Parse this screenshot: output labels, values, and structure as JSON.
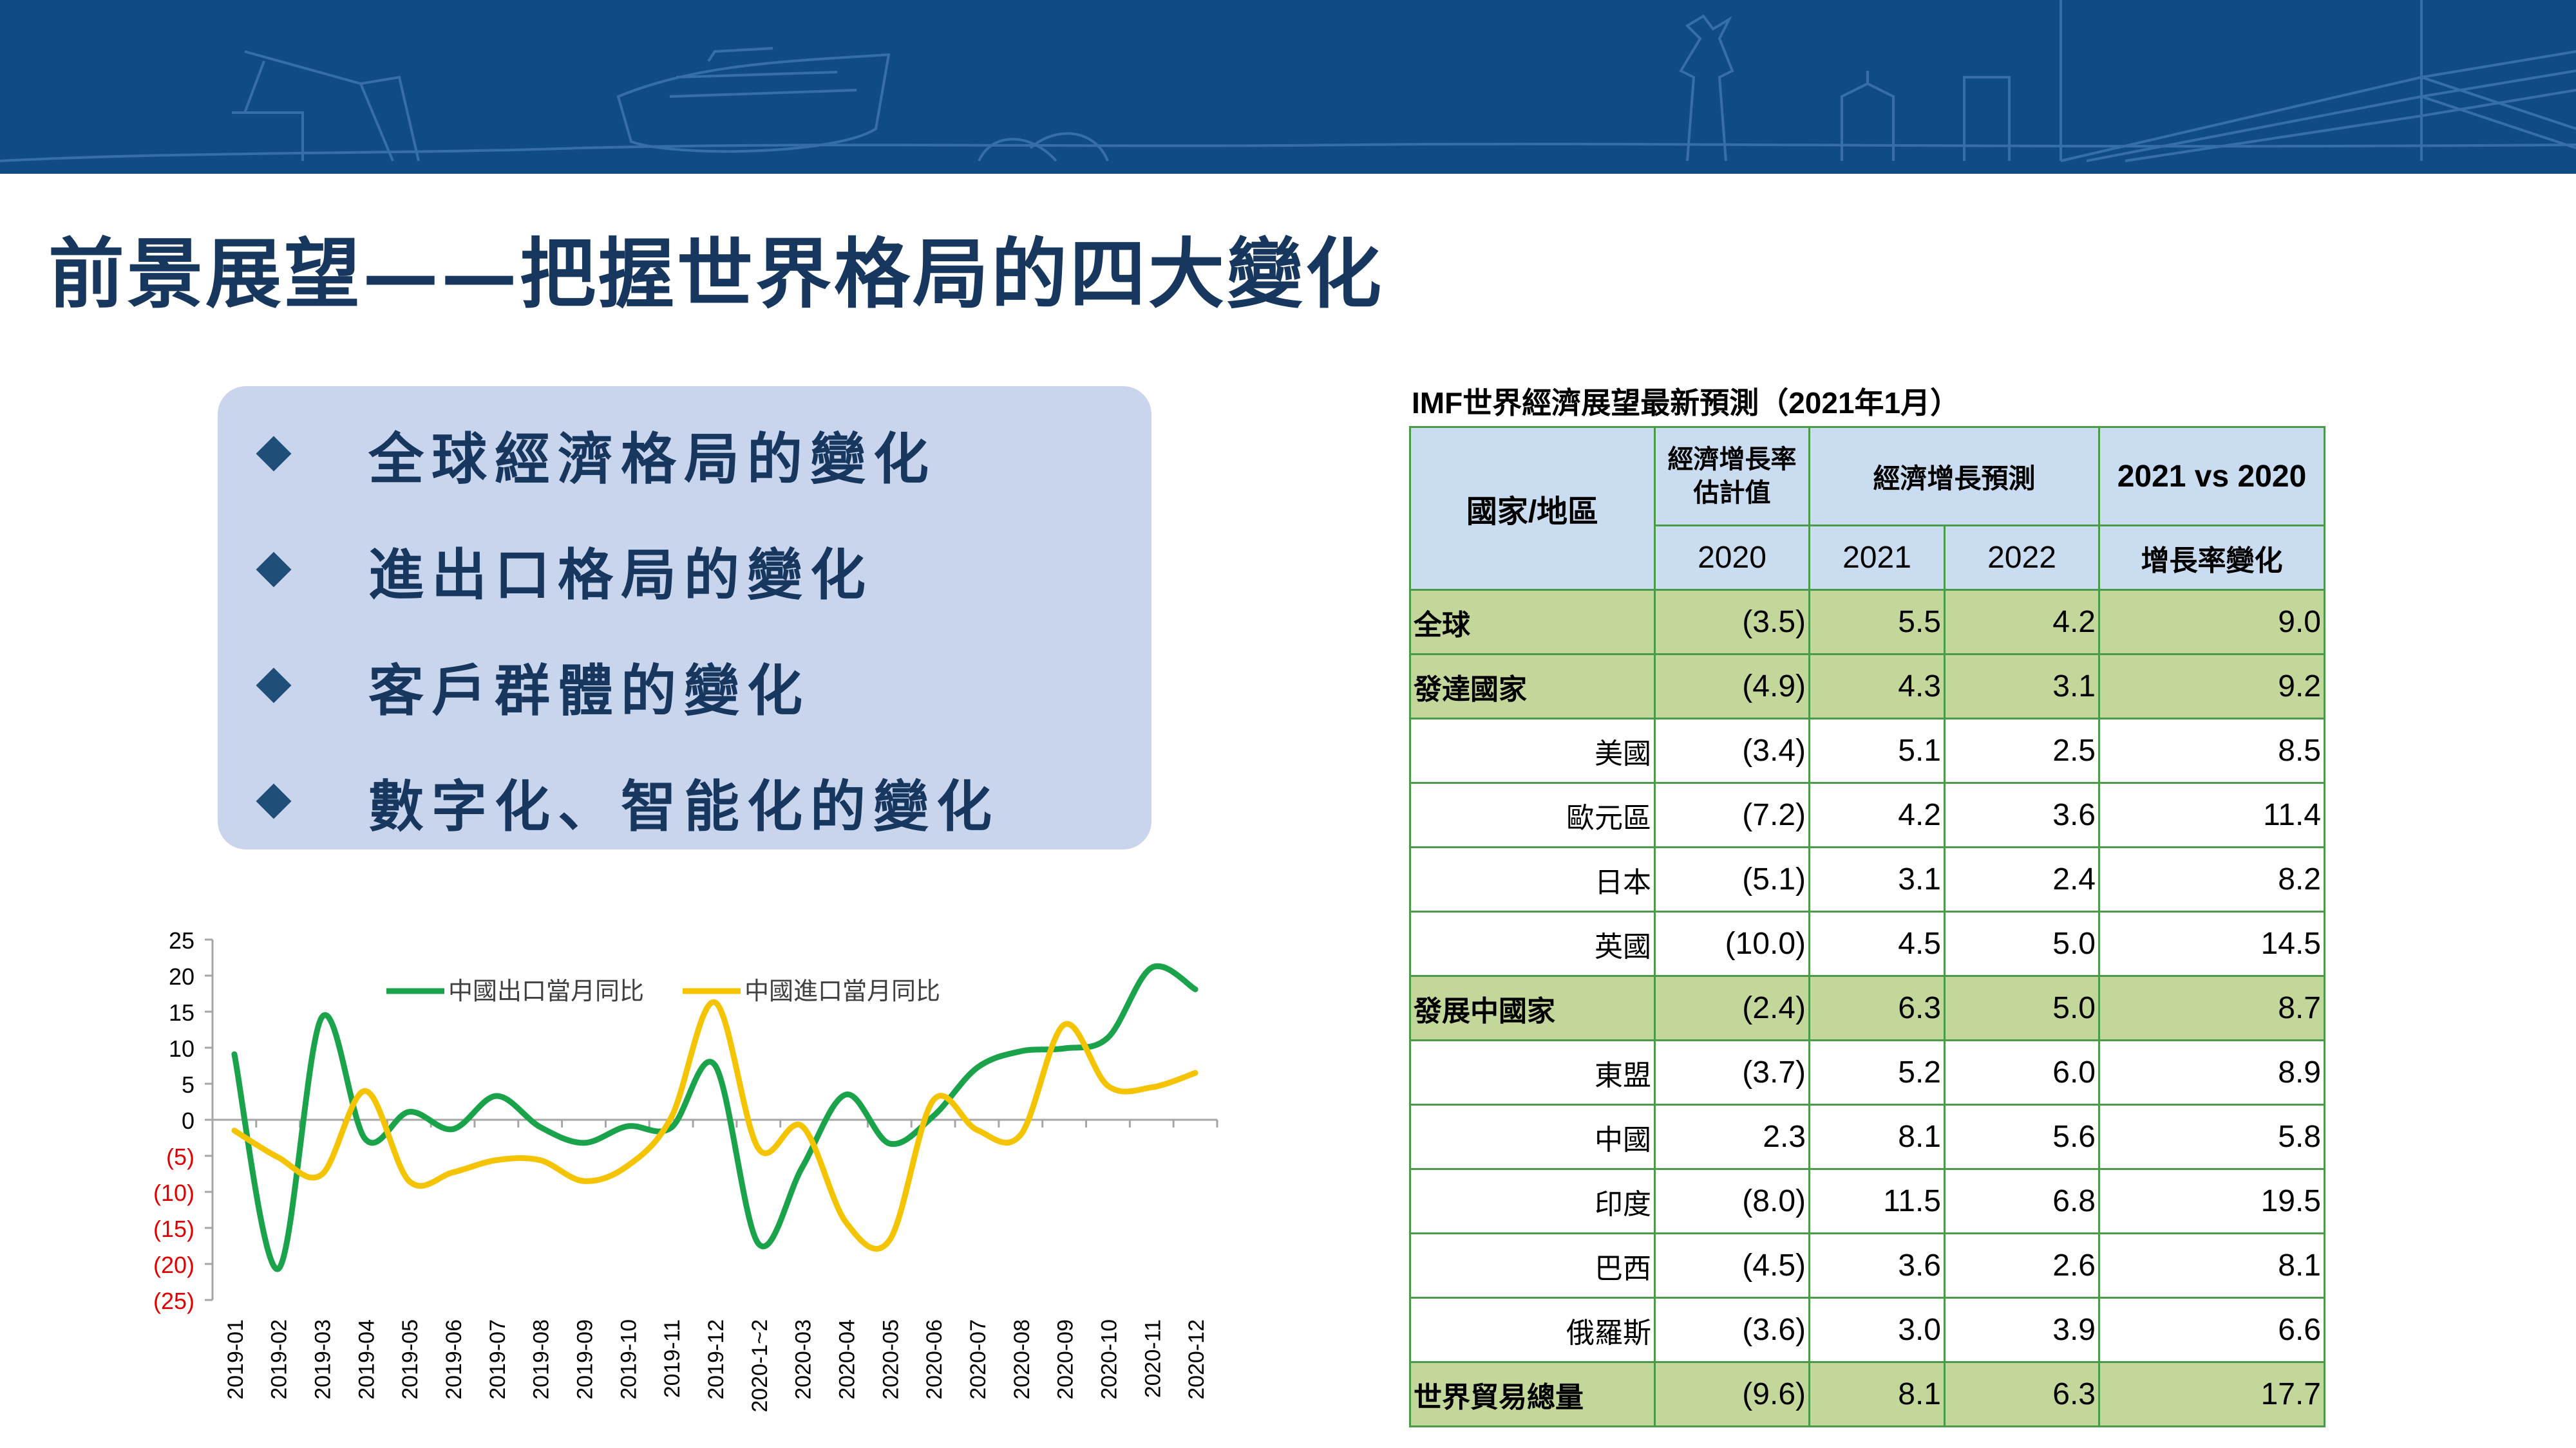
{
  "page_title": "前景展望——把握世界格局的四大變化",
  "bullets": [
    "全球經濟格局的變化",
    "進出口格局的變化",
    "客戶群體的變化",
    "數字化、智能化的變化"
  ],
  "colors": {
    "banner": "#0f4c86",
    "title": "#17375e",
    "bullet_box": "#c9d5ec",
    "table_border": "#4a9a4a",
    "table_header": "#c9dcf0",
    "table_highlight": "#c4d79b",
    "series_export": "#1aa34a",
    "series_import": "#f5c400",
    "negative_tick": "#e00000"
  },
  "icons": {
    "bullet": "diamond-icon"
  },
  "chart_data": {
    "type": "line",
    "categories": [
      "2019-01",
      "2019-02",
      "2019-03",
      "2019-04",
      "2019-05",
      "2019-06",
      "2019-07",
      "2019-08",
      "2019-09",
      "2019-10",
      "2019-11",
      "2019-12",
      "2020-1~2",
      "2020-03",
      "2020-04",
      "2020-05",
      "2020-06",
      "2020-07",
      "2020-08",
      "2020-09",
      "2020-10",
      "2020-11",
      "2020-12"
    ],
    "series": [
      {
        "name": "中國出口當月同比",
        "color": "#1aa34a",
        "values": [
          9.1,
          -20.7,
          14.2,
          -2.7,
          1.1,
          -1.3,
          3.3,
          -1.0,
          -3.2,
          -0.9,
          -1.1,
          7.6,
          -17.2,
          -6.6,
          3.5,
          -3.3,
          0.5,
          7.2,
          9.5,
          9.9,
          11.4,
          21.1,
          18.1
        ]
      },
      {
        "name": "中國進口當月同比",
        "color": "#f5c400",
        "values": [
          -1.5,
          -5.2,
          -7.6,
          4.0,
          -8.5,
          -7.3,
          -5.6,
          -5.6,
          -8.5,
          -6.4,
          0.3,
          16.3,
          -4.0,
          -0.9,
          -14.2,
          -16.7,
          2.7,
          -1.4,
          -2.1,
          13.2,
          4.7,
          4.5,
          6.5
        ]
      }
    ],
    "ylim": [
      -25,
      25
    ],
    "yticks": [
      25,
      20,
      15,
      10,
      5,
      0,
      -5,
      -10,
      -15,
      -20,
      -25
    ],
    "ytick_labels": [
      "25",
      "20",
      "15",
      "10",
      "5",
      "0",
      "(5)",
      "(10)",
      "(15)",
      "(20)",
      "(25)"
    ],
    "legend_position": "top",
    "grid": false,
    "smooth": true
  },
  "table": {
    "title": "IMF世界經濟展望最新預測（2021年1月）",
    "header": {
      "region": "國家/地區",
      "estimate_line1": "經濟增長率",
      "estimate_line2": "估計值",
      "forecast": "經濟增長預測",
      "compare": "2021 vs 2020",
      "y2020": "2020",
      "y2021": "2021",
      "y2022": "2022",
      "change": "增長率變化"
    },
    "rows": [
      {
        "name": "全球",
        "v2020": "(3.5)",
        "v2021": "5.5",
        "v2022": "4.2",
        "change": "9.0",
        "highlight": true
      },
      {
        "name": "發達國家",
        "v2020": "(4.9)",
        "v2021": "4.3",
        "v2022": "3.1",
        "change": "9.2",
        "highlight": true
      },
      {
        "name": "美國",
        "v2020": "(3.4)",
        "v2021": "5.1",
        "v2022": "2.5",
        "change": "8.5",
        "highlight": false
      },
      {
        "name": "歐元區",
        "v2020": "(7.2)",
        "v2021": "4.2",
        "v2022": "3.6",
        "change": "11.4",
        "highlight": false
      },
      {
        "name": "日本",
        "v2020": "(5.1)",
        "v2021": "3.1",
        "v2022": "2.4",
        "change": "8.2",
        "highlight": false
      },
      {
        "name": "英國",
        "v2020": "(10.0)",
        "v2021": "4.5",
        "v2022": "5.0",
        "change": "14.5",
        "highlight": false
      },
      {
        "name": "發展中國家",
        "v2020": "(2.4)",
        "v2021": "6.3",
        "v2022": "5.0",
        "change": "8.7",
        "highlight": true
      },
      {
        "name": "東盟",
        "v2020": "(3.7)",
        "v2021": "5.2",
        "v2022": "6.0",
        "change": "8.9",
        "highlight": false
      },
      {
        "name": "中國",
        "v2020": "2.3",
        "v2021": "8.1",
        "v2022": "5.6",
        "change": "5.8",
        "highlight": false
      },
      {
        "name": "印度",
        "v2020": "(8.0)",
        "v2021": "11.5",
        "v2022": "6.8",
        "change": "19.5",
        "highlight": false
      },
      {
        "name": "巴西",
        "v2020": "(4.5)",
        "v2021": "3.6",
        "v2022": "2.6",
        "change": "8.1",
        "highlight": false
      },
      {
        "name": "俄羅斯",
        "v2020": "(3.6)",
        "v2021": "3.0",
        "v2022": "3.9",
        "change": "6.6",
        "highlight": false
      },
      {
        "name": "世界貿易總量",
        "v2020": "(9.6)",
        "v2021": "8.1",
        "v2022": "6.3",
        "change": "17.7",
        "highlight": true
      }
    ]
  }
}
